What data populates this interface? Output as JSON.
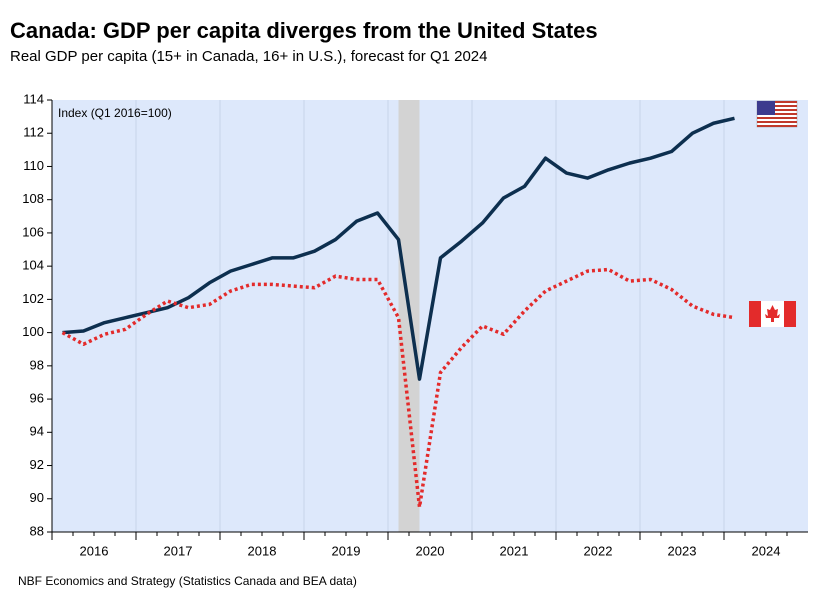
{
  "chart_data": {
    "type": "line",
    "title": "Canada: GDP per capita diverges from the United States",
    "subtitle": "Real GDP per capita (15+ in Canada, 16+ in U.S.), forecast for Q1 2024",
    "annotation": "Index (Q1 2016=100)",
    "source": "NBF Economics and Strategy (Statistics Canada and BEA data)",
    "x": [
      2016,
      2016.25,
      2016.5,
      2016.75,
      2017,
      2017.25,
      2017.5,
      2017.75,
      2018,
      2018.25,
      2018.5,
      2018.75,
      2019,
      2019.25,
      2019.5,
      2019.75,
      2020,
      2020.25,
      2020.5,
      2020.75,
      2021,
      2021.25,
      2021.5,
      2021.75,
      2022,
      2022.25,
      2022.5,
      2022.75,
      2023,
      2023.25,
      2023.5,
      2023.75,
      2024
    ],
    "series": [
      {
        "color": "#0d2f4f",
        "style": "solid",
        "values": [
          100.0,
          100.1,
          100.6,
          100.9,
          101.2,
          101.5,
          102.1,
          103.0,
          103.7,
          104.1,
          104.5,
          104.5,
          104.9,
          105.6,
          106.7,
          107.2,
          105.6,
          97.2,
          104.5,
          105.5,
          106.6,
          108.1,
          108.8,
          110.5,
          109.6,
          109.3,
          109.8,
          110.2,
          110.5,
          110.9,
          112.0,
          112.6,
          112.9
        ]
      },
      {
        "color": "#e32b2b",
        "style": "dotted",
        "values": [
          100.0,
          99.3,
          99.9,
          100.2,
          101.1,
          101.9,
          101.5,
          101.7,
          102.5,
          102.9,
          102.9,
          102.8,
          102.7,
          103.4,
          103.2,
          103.2,
          100.9,
          89.5,
          97.6,
          99.1,
          100.4,
          99.9,
          101.3,
          102.5,
          103.1,
          103.7,
          103.8,
          103.1,
          103.2,
          102.6,
          101.6,
          101.1,
          100.9
        ]
      }
    ],
    "shaded": [
      2020,
      2020.25
    ],
    "xlim": [
      2015.875,
      2024.875
    ],
    "xticks": [
      {
        "value": 2016,
        "label": "2016"
      },
      {
        "value": 2017,
        "label": "2017"
      },
      {
        "value": 2018,
        "label": "2018"
      },
      {
        "value": 2019,
        "label": "2019"
      },
      {
        "value": 2020,
        "label": "2020"
      },
      {
        "value": 2021,
        "label": "2021"
      },
      {
        "value": 2022,
        "label": "2022"
      },
      {
        "value": 2023,
        "label": "2023"
      },
      {
        "value": 2024,
        "label": "2024"
      }
    ],
    "ylim": [
      88,
      114
    ],
    "yticks": [
      88,
      90,
      92,
      94,
      96,
      98,
      100,
      102,
      104,
      106,
      108,
      110,
      112,
      114
    ]
  }
}
